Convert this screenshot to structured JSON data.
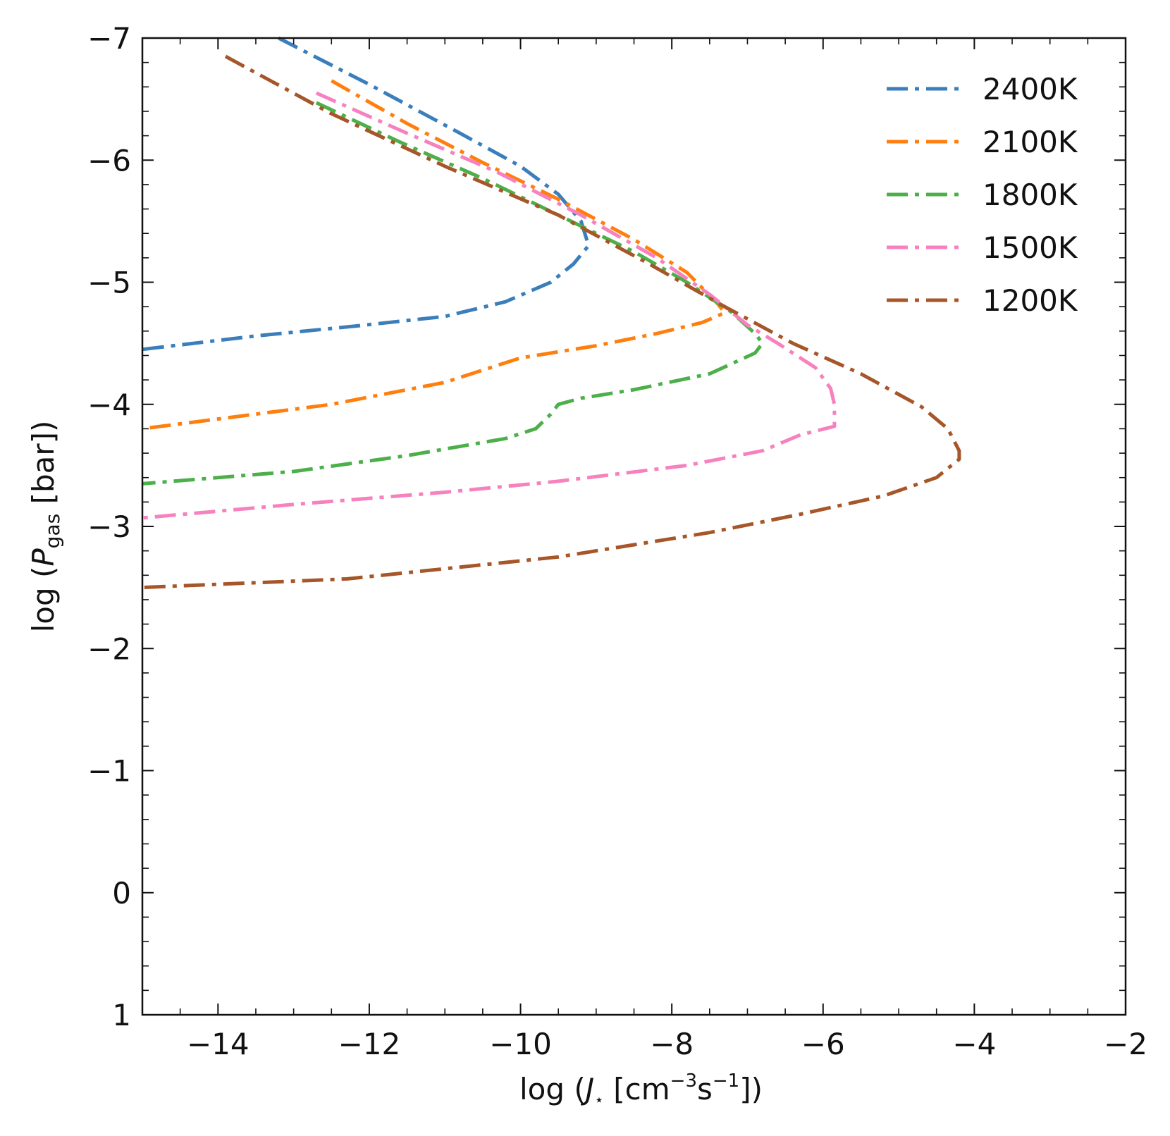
{
  "chart_data": {
    "type": "line",
    "xlabel": "log (J⋆ [cm−3s−1])",
    "xlabel_parts": {
      "prefix": "log (",
      "var": "J",
      "sub": "⋆",
      "mid": " [cm",
      "sup1": "−3",
      "mid2": "s",
      "sup2": "−1",
      "suffix": "])"
    },
    "ylabel": "log (Pgas [bar])",
    "ylabel_parts": {
      "prefix": "log (",
      "var": "P",
      "sub": "gas",
      "suffix": " [bar])"
    },
    "xlim": [
      -15,
      -2
    ],
    "ylim": [
      1,
      -7
    ],
    "y_inverted": true,
    "x_ticks": [
      -14,
      -12,
      -10,
      -8,
      -6,
      -4,
      -2
    ],
    "x_tick_labels": [
      "−14",
      "−12",
      "−10",
      "−8",
      "−6",
      "−4",
      "−2"
    ],
    "y_ticks": [
      -7,
      -6,
      -5,
      -4,
      -3,
      -2,
      -1,
      0,
      1
    ],
    "y_tick_labels": [
      "−7",
      "−6",
      "−5",
      "−4",
      "−3",
      "−2",
      "−1",
      "0",
      "1"
    ],
    "grid": false,
    "line_style": "dash-dot",
    "legend_position": "top-right",
    "series": [
      {
        "name": "2400K",
        "color": "#3a7ebb",
        "points": [
          [
            -13.2,
            -7.0
          ],
          [
            -12.0,
            -6.62
          ],
          [
            -10.8,
            -6.22
          ],
          [
            -10.0,
            -5.95
          ],
          [
            -9.5,
            -5.72
          ],
          [
            -9.2,
            -5.5
          ],
          [
            -9.1,
            -5.3
          ],
          [
            -9.3,
            -5.15
          ],
          [
            -9.6,
            -5.0
          ],
          [
            -10.2,
            -4.84
          ],
          [
            -11.0,
            -4.72
          ],
          [
            -12.2,
            -4.64
          ],
          [
            -13.5,
            -4.56
          ],
          [
            -15.0,
            -4.45
          ]
        ]
      },
      {
        "name": "2100K",
        "color": "#ff7f0e",
        "points": [
          [
            -12.5,
            -6.65
          ],
          [
            -11.5,
            -6.3
          ],
          [
            -10.5,
            -5.98
          ],
          [
            -9.5,
            -5.68
          ],
          [
            -8.5,
            -5.35
          ],
          [
            -7.8,
            -5.08
          ],
          [
            -7.4,
            -4.83
          ],
          [
            -7.3,
            -4.75
          ],
          [
            -7.6,
            -4.67
          ],
          [
            -8.2,
            -4.58
          ],
          [
            -9.0,
            -4.48
          ],
          [
            -10.0,
            -4.38
          ],
          [
            -11.0,
            -4.18
          ],
          [
            -12.5,
            -4.0
          ],
          [
            -15.0,
            -3.8
          ]
        ]
      },
      {
        "name": "1800K",
        "color": "#4daf4a",
        "points": [
          [
            -12.7,
            -6.47
          ],
          [
            -11.6,
            -6.15
          ],
          [
            -10.5,
            -5.85
          ],
          [
            -9.5,
            -5.55
          ],
          [
            -8.5,
            -5.25
          ],
          [
            -7.8,
            -5.0
          ],
          [
            -7.2,
            -4.75
          ],
          [
            -6.9,
            -4.58
          ],
          [
            -6.8,
            -4.5
          ],
          [
            -6.9,
            -4.42
          ],
          [
            -7.5,
            -4.25
          ],
          [
            -8.5,
            -4.12
          ],
          [
            -9.2,
            -4.05
          ],
          [
            -9.5,
            -4.0
          ],
          [
            -9.6,
            -3.92
          ],
          [
            -9.8,
            -3.8
          ],
          [
            -10.2,
            -3.72
          ],
          [
            -11.5,
            -3.58
          ],
          [
            -13.0,
            -3.45
          ],
          [
            -15.0,
            -3.35
          ]
        ]
      },
      {
        "name": "1500K",
        "color": "#f781bf",
        "points": [
          [
            -12.7,
            -6.55
          ],
          [
            -11.5,
            -6.22
          ],
          [
            -10.3,
            -5.9
          ],
          [
            -9.2,
            -5.55
          ],
          [
            -8.2,
            -5.2
          ],
          [
            -7.5,
            -4.9
          ],
          [
            -7.0,
            -4.65
          ],
          [
            -6.6,
            -4.5
          ],
          [
            -6.1,
            -4.3
          ],
          [
            -5.9,
            -4.13
          ],
          [
            -5.85,
            -4.0
          ],
          [
            -5.85,
            -3.82
          ],
          [
            -6.3,
            -3.75
          ],
          [
            -6.8,
            -3.62
          ],
          [
            -7.8,
            -3.5
          ],
          [
            -9.5,
            -3.37
          ],
          [
            -11.0,
            -3.28
          ],
          [
            -13.0,
            -3.18
          ],
          [
            -15.0,
            -3.07
          ]
        ]
      },
      {
        "name": "1200K",
        "color": "#a65628",
        "points": [
          [
            -13.9,
            -6.85
          ],
          [
            -12.5,
            -6.38
          ],
          [
            -11.0,
            -5.95
          ],
          [
            -9.5,
            -5.55
          ],
          [
            -8.3,
            -5.15
          ],
          [
            -7.3,
            -4.8
          ],
          [
            -6.4,
            -4.5
          ],
          [
            -5.5,
            -4.25
          ],
          [
            -4.7,
            -3.98
          ],
          [
            -4.35,
            -3.8
          ],
          [
            -4.2,
            -3.62
          ],
          [
            -4.2,
            -3.55
          ],
          [
            -4.5,
            -3.4
          ],
          [
            -5.2,
            -3.25
          ],
          [
            -6.3,
            -3.1
          ],
          [
            -7.5,
            -2.95
          ],
          [
            -9.5,
            -2.75
          ],
          [
            -12.3,
            -2.57
          ],
          [
            -15.0,
            -2.5
          ]
        ]
      }
    ]
  }
}
